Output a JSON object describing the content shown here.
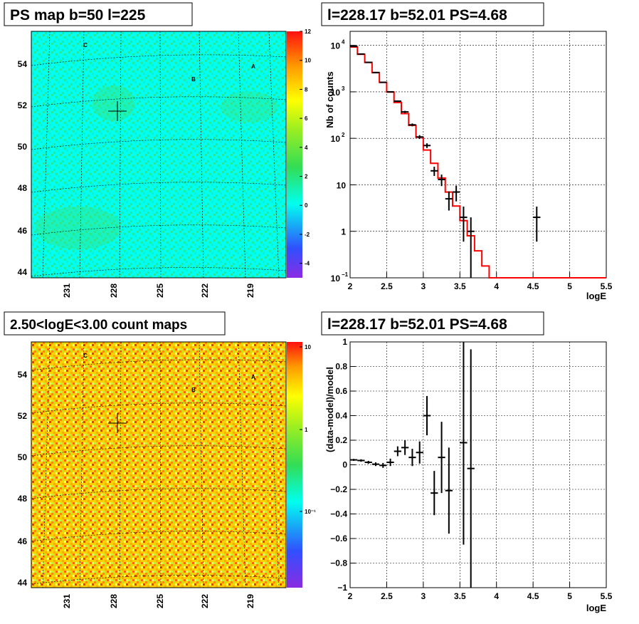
{
  "panels": {
    "top_left": {
      "title": "PS map b=50 l=225"
    },
    "top_right": {
      "title": "l=228.17 b=52.01 PS=4.68"
    },
    "bottom_left": {
      "title": "2.50<logE<3.00 count maps"
    },
    "bottom_right": {
      "title": "l=228.17 b=52.01 PS=4.68"
    }
  },
  "chart_data": [
    {
      "type": "heatmap",
      "title": "PS map b=50 l=225",
      "y_ticks": [
        "44",
        "46",
        "48",
        "50",
        "52",
        "54"
      ],
      "x_ticks": [
        "231",
        "228",
        "225",
        "222",
        "219"
      ],
      "colorbar_ticks": [
        "12",
        "10",
        "8",
        "6",
        "4",
        "2",
        "0",
        "-2",
        "-4"
      ],
      "colorbar_range": [
        -5,
        12
      ],
      "markers": [
        "C",
        "B",
        "A"
      ],
      "dominant_color": "#00ffee"
    },
    {
      "type": "line",
      "title": "l=228.17 b=52.01 PS=4.68",
      "xlabel": "logE",
      "ylabel": "Nb of counts",
      "xlim": [
        2,
        5.5
      ],
      "ylim": [
        0.1,
        20000
      ],
      "log_y": true,
      "x_ticks": [
        "2",
        "2.5",
        "3",
        "3.5",
        "4",
        "4.5",
        "5",
        "5.5"
      ],
      "y_ticks": [
        {
          "v": 0.1,
          "base": "10",
          "exp": "−1"
        },
        {
          "v": 1,
          "base": "1",
          "exp": ""
        },
        {
          "v": 10,
          "base": "10",
          "exp": ""
        },
        {
          "v": 100,
          "base": "10",
          "exp": "2"
        },
        {
          "v": 1000,
          "base": "10",
          "exp": "3"
        },
        {
          "v": 10000,
          "base": "10",
          "exp": "4"
        }
      ],
      "model_steps": {
        "edges": [
          2.0,
          2.1,
          2.2,
          2.3,
          2.4,
          2.5,
          2.6,
          2.7,
          2.8,
          2.9,
          3.0,
          3.1,
          3.2,
          3.3,
          3.4,
          3.5,
          3.6,
          3.7,
          3.8,
          3.9,
          4.0,
          5.5
        ],
        "values": [
          9200,
          6400,
          4300,
          2600,
          1600,
          990,
          590,
          340,
          190,
          105,
          56,
          29,
          14,
          7,
          3.5,
          1.7,
          0.8,
          0.38,
          0.18,
          0.1,
          0.1
        ]
      },
      "data_points": [
        {
          "x": 2.05,
          "y": 9500,
          "ylo": 9400,
          "yhi": 9600
        },
        {
          "x": 2.15,
          "y": 6500,
          "ylo": 6400,
          "yhi": 6600
        },
        {
          "x": 2.25,
          "y": 4300,
          "ylo": 4220,
          "yhi": 4380
        },
        {
          "x": 2.35,
          "y": 2600,
          "ylo": 2550,
          "yhi": 2650
        },
        {
          "x": 2.45,
          "y": 1600,
          "ylo": 1560,
          "yhi": 1640
        },
        {
          "x": 2.55,
          "y": 1000,
          "ylo": 970,
          "yhi": 1030
        },
        {
          "x": 2.65,
          "y": 630,
          "ylo": 605,
          "yhi": 655
        },
        {
          "x": 2.75,
          "y": 370,
          "ylo": 350,
          "yhi": 390
        },
        {
          "x": 2.85,
          "y": 195,
          "ylo": 181,
          "yhi": 209
        },
        {
          "x": 2.95,
          "y": 107,
          "ylo": 97,
          "yhi": 117
        },
        {
          "x": 3.05,
          "y": 70,
          "ylo": 62,
          "yhi": 78
        },
        {
          "x": 3.15,
          "y": 20,
          "ylo": 15.5,
          "yhi": 24.5
        },
        {
          "x": 3.25,
          "y": 13,
          "ylo": 9.4,
          "yhi": 16.6
        },
        {
          "x": 3.35,
          "y": 5,
          "ylo": 2.8,
          "yhi": 7.2
        },
        {
          "x": 3.45,
          "y": 7,
          "ylo": 4.4,
          "yhi": 9.6
        },
        {
          "x": 3.55,
          "y": 2,
          "ylo": 0.6,
          "yhi": 3.4
        },
        {
          "x": 3.65,
          "y": 1,
          "ylo": 0.1,
          "yhi": 2.0
        },
        {
          "x": 4.55,
          "y": 2,
          "ylo": 0.6,
          "yhi": 3.4
        }
      ]
    },
    {
      "type": "heatmap",
      "title": "2.50<logE<3.00 count maps",
      "y_ticks": [
        "44",
        "46",
        "48",
        "50",
        "52",
        "54"
      ],
      "x_ticks": [
        "231",
        "228",
        "225",
        "222",
        "219"
      ],
      "colorbar_ticks": [
        "10",
        "1",
        "10⁻¹"
      ],
      "markers": [
        "C",
        "B",
        "A"
      ],
      "dominant_color": "#ffd000"
    },
    {
      "type": "scatter",
      "title": "l=228.17 b=52.01 PS=4.68",
      "xlabel": "logE",
      "ylabel": "(data-model)/model",
      "xlim": [
        2,
        5.5
      ],
      "ylim": [
        -1,
        1
      ],
      "x_ticks": [
        "2",
        "2.5",
        "3",
        "3.5",
        "4",
        "4.5",
        "5",
        "5.5"
      ],
      "y_ticks": [
        "1",
        "0.8",
        "0.6",
        "0.4",
        "0.2",
        "0",
        "−0.2",
        "−0.4",
        "−0.6",
        "−0.8",
        "−1"
      ],
      "points": [
        {
          "x": 2.05,
          "y": 0.04,
          "err": 0.008
        },
        {
          "x": 2.15,
          "y": 0.035,
          "err": 0.01
        },
        {
          "x": 2.25,
          "y": 0.02,
          "err": 0.012
        },
        {
          "x": 2.35,
          "y": 0.005,
          "err": 0.015
        },
        {
          "x": 2.45,
          "y": -0.005,
          "err": 0.02
        },
        {
          "x": 2.55,
          "y": 0.02,
          "err": 0.03
        },
        {
          "x": 2.65,
          "y": 0.11,
          "err": 0.04
        },
        {
          "x": 2.75,
          "y": 0.14,
          "err": 0.06
        },
        {
          "x": 2.85,
          "y": 0.06,
          "err": 0.07
        },
        {
          "x": 2.95,
          "y": 0.1,
          "err": 0.09
        },
        {
          "x": 3.05,
          "y": 0.4,
          "err": 0.16
        },
        {
          "x": 3.15,
          "y": -0.23,
          "err": 0.18
        },
        {
          "x": 3.25,
          "y": 0.06,
          "err": 0.29
        },
        {
          "x": 3.35,
          "y": -0.21,
          "err": 0.35
        },
        {
          "x": 3.55,
          "y": 0.18,
          "err": 0.83
        },
        {
          "x": 3.65,
          "y": -0.03,
          "err": 0.97
        }
      ]
    }
  ]
}
